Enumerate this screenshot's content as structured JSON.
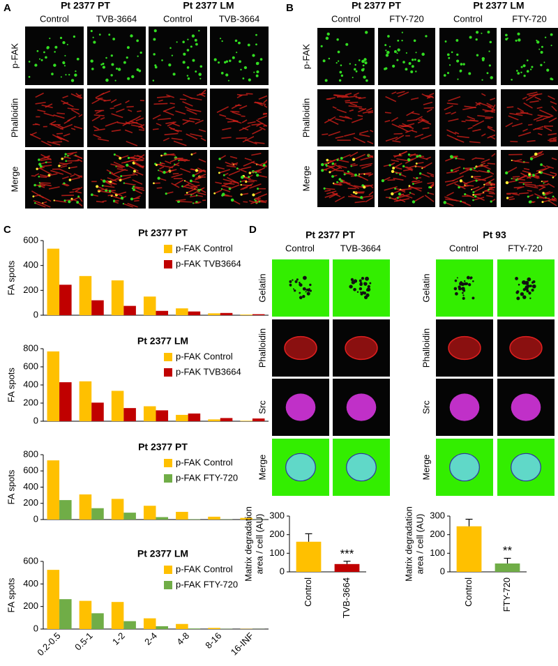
{
  "panels": {
    "A": {
      "label": "A",
      "groups": [
        {
          "title": "Pt 2377 PT",
          "columns": [
            "Control",
            "TVB-3664"
          ]
        },
        {
          "title": "Pt 2377 LM",
          "columns": [
            "Control",
            "TVB-3664"
          ]
        }
      ],
      "rows": [
        "p-FAK",
        "Phalloidin",
        "Merge"
      ]
    },
    "B": {
      "label": "B",
      "groups": [
        {
          "title": "Pt 2377 PT",
          "columns": [
            "Control",
            "FTY-720"
          ]
        },
        {
          "title": "Pt 2377 LM",
          "columns": [
            "Control",
            "FTY-720"
          ]
        }
      ],
      "rows": [
        "p-FAK",
        "Phalloidin",
        "Merge"
      ]
    },
    "C": {
      "label": "C"
    },
    "D": {
      "label": "D",
      "groups": [
        {
          "title": "Pt 2377 PT",
          "columns": [
            "Control",
            "TVB-3664"
          ],
          "rows": [
            "Gelatin",
            "Phalloidin",
            "Src",
            "Merge"
          ]
        },
        {
          "title": "Pt 93",
          "columns": [
            "Control",
            "FTY-720"
          ],
          "rows": [
            "Gelatin",
            "Phalloidin",
            "Src",
            "Merge"
          ]
        }
      ]
    }
  },
  "chart_data": [
    {
      "type": "bar",
      "title": "Pt 2377 PT",
      "ylabel": [
        "FA spots"
      ],
      "ylim": [
        0,
        600
      ],
      "yticks": [
        0,
        200,
        400,
        600
      ],
      "legend": "upper right",
      "series": [
        {
          "name": "p-FAK Control",
          "color": "#ffc000",
          "values": [
            535,
            315,
            280,
            150,
            55,
            15,
            5
          ]
        },
        {
          "name": "p-FAK TVB3664",
          "color": "#c00000",
          "values": [
            245,
            120,
            75,
            35,
            30,
            18,
            8
          ]
        }
      ]
    },
    {
      "type": "bar",
      "title": "Pt 2377 LM",
      "ylabel": [
        "FA spots"
      ],
      "ylim": [
        0,
        800
      ],
      "yticks": [
        0,
        200,
        400,
        600,
        800
      ],
      "legend": "upper right",
      "series": [
        {
          "name": "p-FAK Control",
          "color": "#ffc000",
          "values": [
            770,
            440,
            335,
            165,
            70,
            20,
            5
          ]
        },
        {
          "name": "p-FAK TVB3664",
          "color": "#c00000",
          "values": [
            430,
            205,
            145,
            120,
            85,
            35,
            30
          ]
        }
      ]
    },
    {
      "type": "bar",
      "title": "Pt 2377 PT",
      "ylabel": [
        "FA spots"
      ],
      "ylim": [
        0,
        800
      ],
      "yticks": [
        0,
        200,
        400,
        600,
        800
      ],
      "legend": "upper right",
      "series": [
        {
          "name": "p-FAK Control",
          "color": "#ffc000",
          "values": [
            730,
            310,
            255,
            170,
            95,
            35,
            20
          ]
        },
        {
          "name": "p-FAK FTY-720",
          "color": "#70ad47",
          "values": [
            240,
            140,
            85,
            30,
            5,
            3,
            2
          ]
        }
      ]
    },
    {
      "type": "bar",
      "title": "Pt 2377 LM",
      "ylabel": [
        "FA spots"
      ],
      "ylim": [
        0,
        600
      ],
      "yticks": [
        0,
        200,
        400,
        600
      ],
      "legend": "upper right",
      "categories": [
        "0.2-0.5",
        "0.5-1",
        "1-2",
        "2-4",
        "4-8",
        "8-16",
        "16-INF"
      ],
      "series": [
        {
          "name": "p-FAK Control",
          "color": "#ffc000",
          "values": [
            525,
            250,
            240,
            95,
            45,
            10,
            2
          ]
        },
        {
          "name": "p-FAK FTY-720",
          "color": "#70ad47",
          "values": [
            265,
            140,
            70,
            25,
            5,
            2,
            1
          ]
        }
      ]
    },
    {
      "type": "errbar",
      "ylabel": [
        "Matrix degradation",
        "area / cell (AU)"
      ],
      "ylim": [
        0,
        300
      ],
      "yticks": [
        0,
        100,
        200,
        300
      ],
      "categories": [
        "Control",
        "TVB-3664"
      ],
      "values": [
        162,
        42
      ],
      "errors": [
        43,
        15
      ],
      "colors": [
        "#ffc000",
        "#c00000"
      ],
      "annotation": "***"
    },
    {
      "type": "errbar",
      "ylabel": [
        "Matrix degradation",
        "area / cell (AU)"
      ],
      "ylim": [
        0,
        300
      ],
      "yticks": [
        0,
        100,
        200,
        300
      ],
      "categories": [
        "Control",
        "FTY-720"
      ],
      "values": [
        245,
        45
      ],
      "errors": [
        38,
        28
      ],
      "colors": [
        "#ffc000",
        "#70ad47"
      ],
      "annotation": "**"
    }
  ]
}
